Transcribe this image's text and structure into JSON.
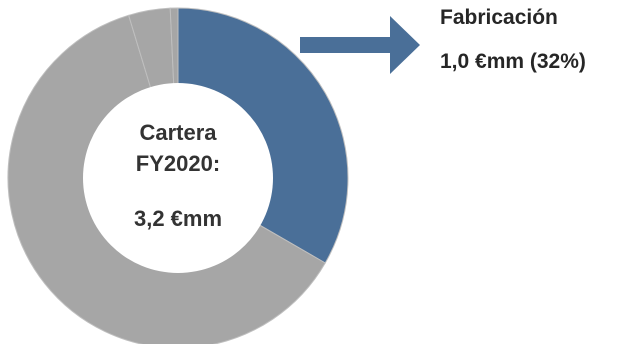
{
  "chart_data": {
    "type": "pie",
    "variant": "donut",
    "center_label": {
      "line1": "Cartera",
      "line2": "FY2020:",
      "value": "3,2 €mm"
    },
    "slices": [
      {
        "value": 32,
        "color": "#4a6f98"
      },
      {
        "value": 59.5,
        "color": "#a6a6a6"
      },
      {
        "value": 3.8,
        "color": "#a6a6a6"
      },
      {
        "value": 0.7,
        "color": "#a6a6a6"
      }
    ],
    "callout": {
      "name": "Fabricación",
      "value_label": "1,0 €mm (32%)",
      "arrow_color": "#4a6f98"
    },
    "separator_color": "#bfbfbf"
  }
}
